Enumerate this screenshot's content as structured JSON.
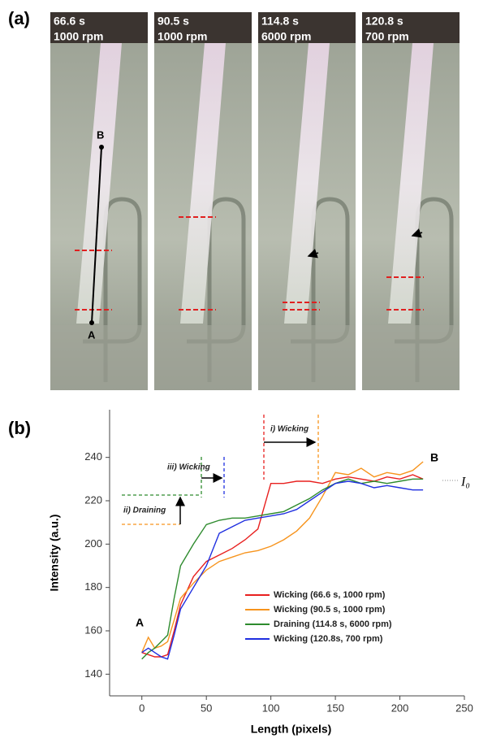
{
  "panel_a": {
    "label": "(a)",
    "photos": [
      {
        "time": "66.6 s",
        "speed": "1000 rpm"
      },
      {
        "time": "90.5 s",
        "speed": "1000 rpm"
      },
      {
        "time": "114.8 s",
        "speed": "6000 rpm"
      },
      {
        "time": "120.8 s",
        "speed": "700 rpm"
      }
    ],
    "point_a": "A",
    "point_b": "B"
  },
  "panel_b": {
    "label": "(b)"
  },
  "chart_data": {
    "type": "line",
    "xlabel": "Length (pixels)",
    "ylabel": "Intensity (a.u.)",
    "x": [
      0,
      5,
      10,
      15,
      20,
      25,
      30,
      40,
      50,
      60,
      70,
      80,
      90,
      100,
      110,
      120,
      130,
      140,
      150,
      160,
      170,
      180,
      190,
      200,
      210,
      218
    ],
    "series": [
      {
        "name": "Wicking (66.6 s, 1000 rpm)",
        "color": "#e8201f",
        "values": [
          150,
          149,
          148,
          148,
          149,
          160,
          172,
          185,
          192,
          195,
          198,
          202,
          207,
          228,
          228,
          229,
          229,
          228,
          230,
          231,
          230,
          229,
          231,
          230,
          232,
          230
        ]
      },
      {
        "name": "Wicking (90.5 s, 1000 rpm)",
        "color": "#f7941d",
        "values": [
          150,
          157,
          152,
          153,
          155,
          165,
          175,
          182,
          188,
          192,
          194,
          196,
          197,
          199,
          202,
          206,
          212,
          222,
          233,
          232,
          235,
          231,
          233,
          232,
          234,
          238
        ]
      },
      {
        "name": "Draining (114.8 s, 6000 rpm)",
        "color": "#2e8b2e",
        "values": [
          147,
          150,
          152,
          155,
          158,
          175,
          190,
          200,
          209,
          211,
          212,
          212,
          213,
          214,
          215,
          218,
          221,
          225,
          228,
          230,
          228,
          229,
          228,
          229,
          230,
          230
        ]
      },
      {
        "name": "Wicking (120.8s, 700 rpm)",
        "color": "#1f2fe0",
        "values": [
          150,
          152,
          150,
          148,
          147,
          158,
          170,
          180,
          190,
          205,
          208,
          211,
          212,
          213,
          214,
          216,
          220,
          224,
          228,
          229,
          228,
          226,
          227,
          226,
          225,
          225
        ]
      }
    ],
    "xlim": [
      -25,
      250
    ],
    "xticks": [
      0,
      50,
      100,
      150,
      200,
      250
    ],
    "ylim": [
      130,
      262
    ],
    "yticks": [
      140,
      160,
      180,
      200,
      220,
      240
    ],
    "annotations": {
      "start": "A",
      "end": "B",
      "baseline": "I₀",
      "step1": "i) Wicking",
      "step2": "ii) Draining",
      "step3": "iii) Wicking"
    }
  }
}
